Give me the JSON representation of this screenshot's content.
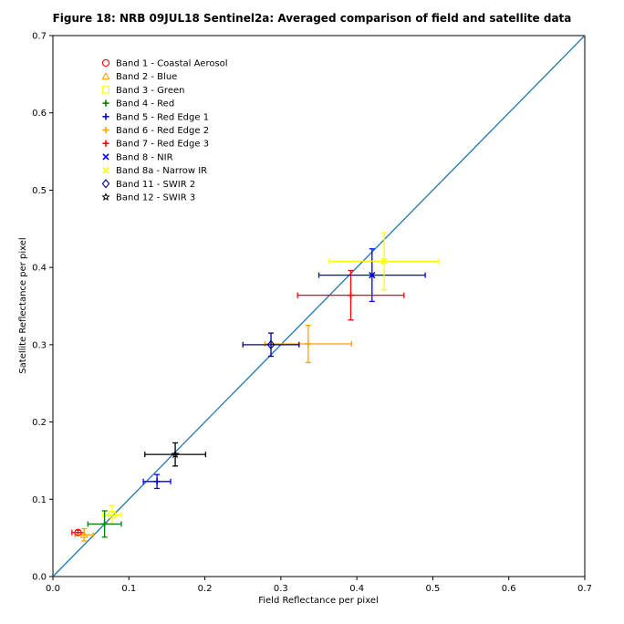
{
  "chart_data": {
    "type": "scatter",
    "title": "Figure 18: NRB 09JUL18  Sentinel2a: Averaged comparison of field and satellite data",
    "xlabel": "Field Reflectance per pixel",
    "ylabel": "Satellite Reflectance per pixel",
    "xlim": [
      0.0,
      0.7
    ],
    "ylim": [
      0.0,
      0.7
    ],
    "xticks": [
      "0.0",
      "0.1",
      "0.2",
      "0.3",
      "0.4",
      "0.5",
      "0.6",
      "0.7"
    ],
    "yticks": [
      "0.0",
      "0.1",
      "0.2",
      "0.3",
      "0.4",
      "0.5",
      "0.6",
      "0.7"
    ],
    "grid": false,
    "legend_position": "top-left",
    "reference_line": {
      "from": [
        0.0,
        0.0
      ],
      "to": [
        0.7,
        0.7
      ],
      "color": "#1f77b4"
    },
    "series": [
      {
        "name": "Band 1 - Coastal Aerosol",
        "marker": "circle",
        "color": "#ff0000",
        "x": 0.033,
        "y": 0.057,
        "xerr": 0.008,
        "yerr": 0.003
      },
      {
        "name": "Band 2 - Blue",
        "marker": "triangle",
        "color": "#ffa500",
        "x": 0.041,
        "y": 0.054,
        "xerr": 0.012,
        "yerr": 0.008
      },
      {
        "name": "Band 3 - Green",
        "marker": "square",
        "color": "#ffff00",
        "x": 0.078,
        "y": 0.08,
        "xerr": 0.012,
        "yerr": 0.012
      },
      {
        "name": "Band 4 - Red",
        "marker": "plus",
        "color": "#008000",
        "x": 0.068,
        "y": 0.068,
        "xerr": 0.022,
        "yerr": 0.017
      },
      {
        "name": "Band 5 - Red Edge 1",
        "marker": "plus",
        "color": "#0000ff",
        "x": 0.137,
        "y": 0.123,
        "xerr": 0.018,
        "yerr": 0.009
      },
      {
        "name": "Band 6 - Red Edge 2",
        "marker": "plus",
        "color": "#ffa500",
        "x": 0.336,
        "y": 0.301,
        "xerr": 0.057,
        "yerr": 0.024
      },
      {
        "name": "Band 7 - Red Edge 3",
        "marker": "plus",
        "color": "#ff0000",
        "x": 0.392,
        "y": 0.364,
        "xerr": 0.07,
        "yerr": 0.032
      },
      {
        "name": "Band 8 - NIR",
        "marker": "x",
        "color": "#0000ff",
        "x": 0.42,
        "y": 0.39,
        "xerr": 0.07,
        "yerr": 0.034
      },
      {
        "name": "Band 8a - Narrow IR",
        "marker": "x",
        "color": "#ffff00",
        "x": 0.436,
        "y": 0.408,
        "xerr": 0.072,
        "yerr": 0.037
      },
      {
        "name": "Band 11 - SWIR 2",
        "marker": "diamond",
        "color": "#00008b",
        "x": 0.287,
        "y": 0.3,
        "xerr": 0.037,
        "yerr": 0.015
      },
      {
        "name": "Band 12 - SWIR 3",
        "marker": "star",
        "color": "#000000",
        "x": 0.161,
        "y": 0.158,
        "xerr": 0.04,
        "yerr": 0.015
      }
    ]
  }
}
